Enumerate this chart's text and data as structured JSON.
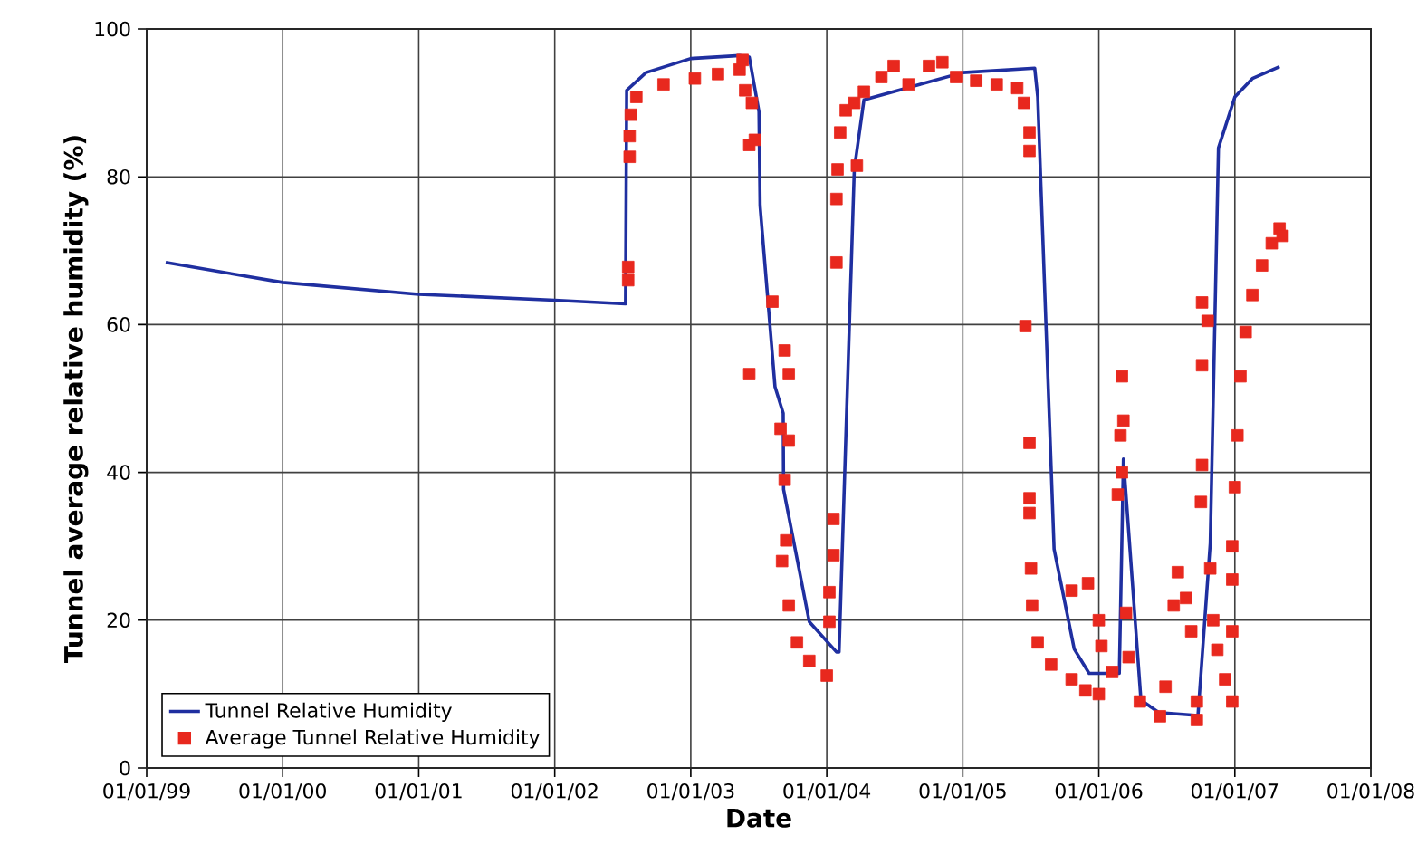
{
  "chart_data": {
    "type": "line",
    "xlabel": "Date",
    "ylabel": "Tunnel average relative humidity (%)",
    "xlim": [
      "1999-01-01",
      "2008-01-01"
    ],
    "ylim": [
      0,
      100
    ],
    "xticks": [
      {
        "value": "1999-01-01",
        "label": "01/01/99"
      },
      {
        "value": "2000-01-01",
        "label": "01/01/00"
      },
      {
        "value": "2001-01-01",
        "label": "01/01/01"
      },
      {
        "value": "2002-01-01",
        "label": "01/01/02"
      },
      {
        "value": "2003-01-01",
        "label": "01/01/03"
      },
      {
        "value": "2004-01-01",
        "label": "01/01/04"
      },
      {
        "value": "2005-01-01",
        "label": "01/01/05"
      },
      {
        "value": "2006-01-01",
        "label": "01/01/06"
      },
      {
        "value": "2007-01-01",
        "label": "01/01/07"
      },
      {
        "value": "2008-01-01",
        "label": "01/01/08"
      }
    ],
    "yticks": [
      0,
      20,
      40,
      60,
      80,
      100
    ],
    "grid": true,
    "legend": "bottom left",
    "line_style": "solid",
    "series": [
      {
        "name": "Tunnel Relative Humidity",
        "color": "#1f2fa0",
        "x": [
          "1999-02-21",
          "2000-01-01",
          "2001-01-01",
          "2002-01-01",
          "2002-07-10",
          "2002-07-13",
          "2002-09-03",
          "2003-01-01",
          "2003-05-12",
          "2003-06-07",
          "2003-07-03",
          "2003-07-06",
          "2003-08-15",
          "2003-09-06",
          "2003-09-07",
          "2003-11-15",
          "2004-01-27",
          "2004-02-03",
          "2004-03-15",
          "2004-04-10",
          "2005-01-01",
          "2005-07-13",
          "2005-07-21",
          "2005-09-03",
          "2005-10-27",
          "2005-12-06",
          "2006-02-25",
          "2006-03-08",
          "2006-04-24",
          "2006-06-11",
          "2006-09-24",
          "2006-10-27",
          "2006-11-18",
          "2007-01-01",
          "2007-02-17",
          "2007-05-01"
        ],
        "values": [
          68.4,
          65.7,
          64.1,
          63.3,
          62.8,
          91.7,
          94.1,
          96.0,
          96.4,
          96.2,
          88.8,
          76.1,
          51.6,
          48.0,
          37.7,
          19.8,
          15.7,
          15.7,
          81.0,
          90.4,
          94.1,
          94.7,
          90.8,
          29.6,
          16.1,
          12.8,
          12.8,
          41.8,
          9.2,
          7.5,
          7.1,
          30.4,
          83.9,
          90.8,
          93.3,
          94.9
        ]
      },
      {
        "name": "Average Tunnel Relative Humidity",
        "type": "scatter",
        "marker": "square",
        "color": "#e8281e",
        "x": [
          "2002-07-17",
          "2002-07-17",
          "2002-07-21",
          "2002-07-21",
          "2002-07-24",
          "2002-08-08",
          "2002-10-20",
          "2003-01-12",
          "2003-03-15",
          "2003-05-12",
          "2003-05-20",
          "2003-05-27",
          "2003-06-14",
          "2003-06-07",
          "2003-06-07",
          "2003-06-22",
          "2003-08-08",
          "2003-09-10",
          "2003-09-21",
          "2003-08-30",
          "2003-09-21",
          "2003-09-10",
          "2003-09-14",
          "2003-09-03",
          "2003-09-21",
          "2003-10-13",
          "2003-11-15",
          "2004-01-01",
          "2004-01-08",
          "2004-01-08",
          "2004-01-19",
          "2004-01-19",
          "2004-01-27",
          "2004-01-27",
          "2004-01-30",
          "2004-02-06",
          "2004-02-21",
          "2004-03-15",
          "2004-03-22",
          "2004-04-10",
          "2004-05-27",
          "2004-06-29",
          "2004-08-08",
          "2004-10-02",
          "2004-11-07",
          "2004-12-14",
          "2005-02-06",
          "2005-04-02",
          "2005-05-27",
          "2005-06-14",
          "2005-06-29",
          "2005-06-29",
          "2005-06-18",
          "2005-06-29",
          "2005-06-29",
          "2005-06-29",
          "2005-07-03",
          "2005-07-06",
          "2005-07-21",
          "2005-08-26",
          "2005-10-20",
          "2005-11-26",
          "2006-01-01",
          "2005-10-20",
          "2005-12-03",
          "2006-01-01",
          "2006-01-08",
          "2006-02-06",
          "2006-02-21",
          "2006-02-28",
          "2006-03-04",
          "2006-03-08",
          "2006-03-04",
          "2006-03-15",
          "2006-03-22",
          "2006-04-21",
          "2006-06-14",
          "2006-06-29",
          "2006-07-21",
          "2006-08-01",
          "2006-08-23",
          "2006-09-06",
          "2006-09-21",
          "2006-09-21",
          "2006-10-02",
          "2006-10-05",
          "2006-10-05",
          "2006-10-05",
          "2006-10-20",
          "2006-10-27",
          "2006-11-04",
          "2006-11-15",
          "2006-12-06",
          "2006-12-25",
          "2006-12-25",
          "2006-12-25",
          "2006-12-25",
          "2007-01-01",
          "2007-01-08",
          "2007-01-16",
          "2007-01-30",
          "2007-02-17",
          "2007-03-15",
          "2007-04-10",
          "2007-05-01",
          "2007-05-09"
        ],
        "values": [
          66,
          67.8,
          82.7,
          85.5,
          88.4,
          90.8,
          92.5,
          93.3,
          93.9,
          94.5,
          95.8,
          91.7,
          90,
          84.3,
          53.3,
          85,
          63.1,
          56.5,
          53.3,
          45.9,
          44.3,
          39,
          30.8,
          28,
          22,
          17,
          14.5,
          12.5,
          19.8,
          23.8,
          33.7,
          28.8,
          68.4,
          77,
          81,
          86,
          89,
          90,
          81.5,
          91.5,
          93.5,
          95,
          92.5,
          95,
          95.5,
          93.5,
          93,
          92.5,
          92,
          90,
          86,
          83.5,
          59.8,
          44,
          36.5,
          34.5,
          27,
          22,
          17,
          14,
          12,
          10.5,
          10,
          24,
          25,
          20,
          16.5,
          13,
          37,
          45,
          53,
          47,
          40,
          21,
          15,
          9,
          7,
          11,
          22,
          26.5,
          23,
          18.5,
          6.5,
          9,
          36,
          41,
          54.5,
          63,
          60.5,
          27,
          20,
          16,
          12,
          9,
          18.5,
          25.5,
          30,
          38,
          45,
          53,
          59,
          64,
          68,
          71,
          73,
          72
        ]
      }
    ]
  }
}
